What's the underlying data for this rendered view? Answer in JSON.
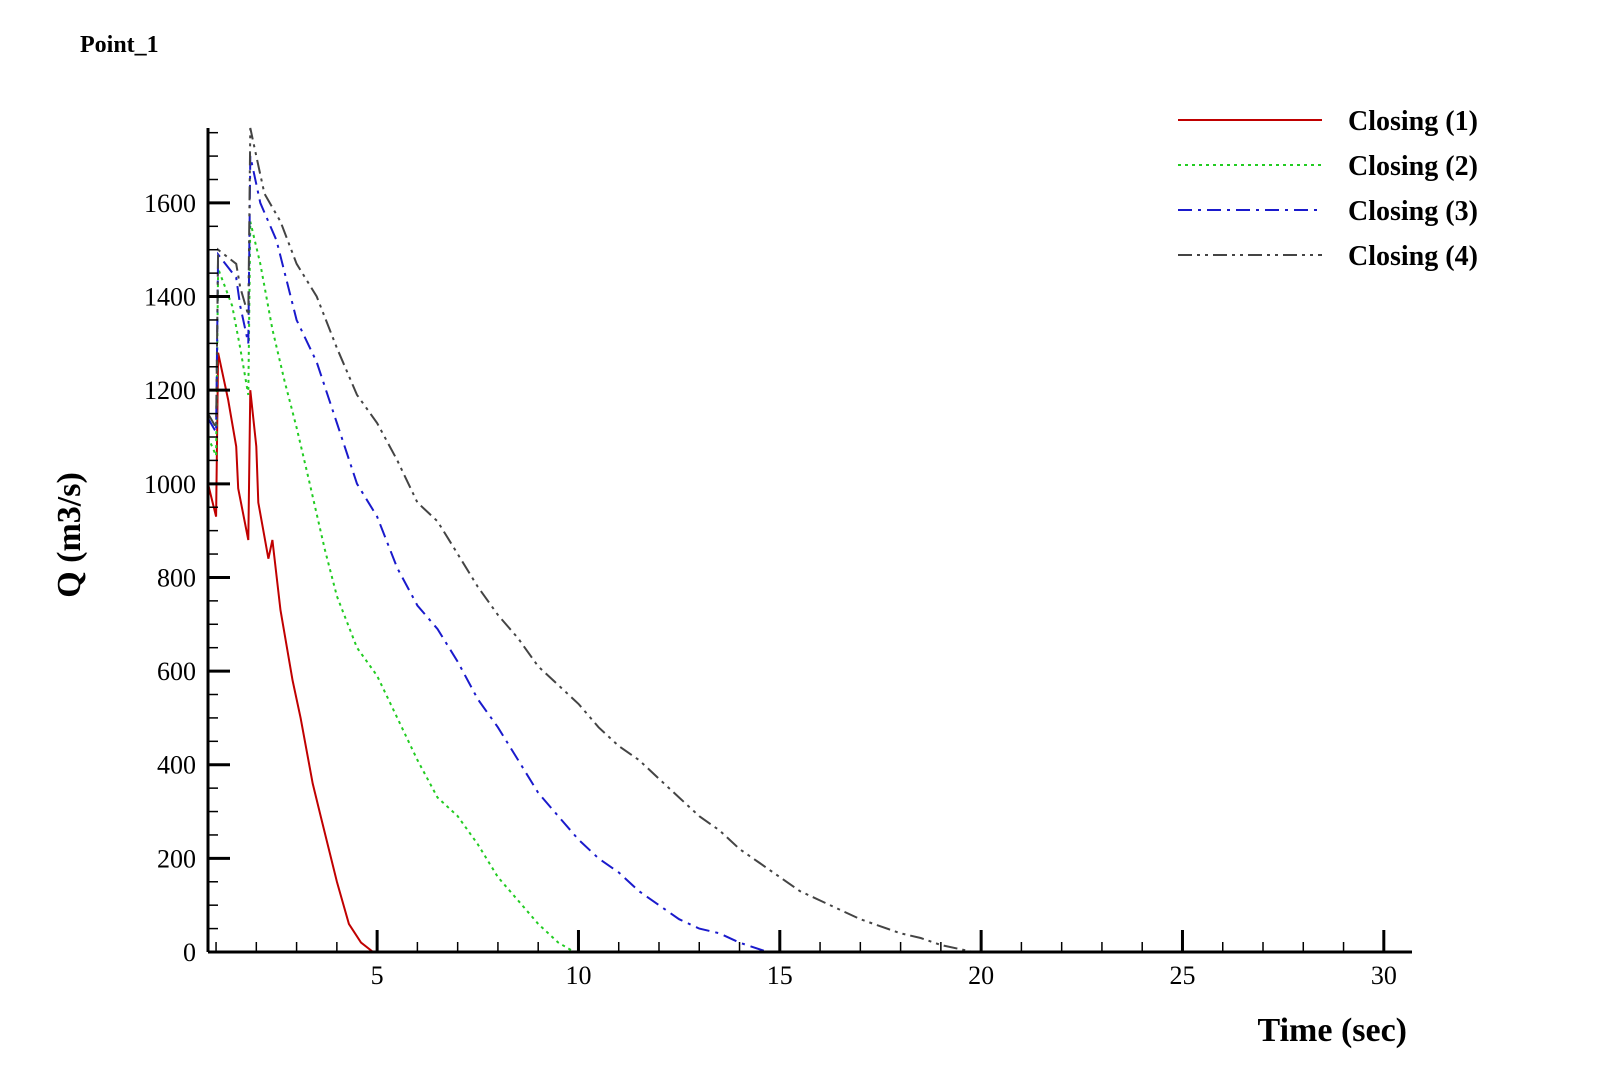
{
  "chart_data": {
    "type": "line",
    "title": "Point_1",
    "xlabel": "Time (sec)",
    "ylabel": "Q (m3/s)",
    "xlim": [
      0.8,
      30.7
    ],
    "ylim": [
      0,
      1760
    ],
    "xticks": [
      5,
      10,
      15,
      20,
      25,
      30
    ],
    "yticks": [
      0,
      200,
      400,
      600,
      800,
      1000,
      1200,
      1400,
      1600
    ],
    "x_minor_step": 1,
    "y_minor_step": 50,
    "grid": false,
    "legend_position": "top-right",
    "series": [
      {
        "name": "Closing (1)",
        "color": "#c00000",
        "dash": "solid",
        "points": [
          [
            0.8,
            1000
          ],
          [
            1.0,
            930
          ],
          [
            1.05,
            1280
          ],
          [
            1.3,
            1180
          ],
          [
            1.5,
            1080
          ],
          [
            1.55,
            990
          ],
          [
            1.8,
            880
          ],
          [
            1.85,
            1200
          ],
          [
            2.0,
            1080
          ],
          [
            2.05,
            960
          ],
          [
            2.3,
            840
          ],
          [
            2.4,
            880
          ],
          [
            2.6,
            730
          ],
          [
            2.9,
            580
          ],
          [
            3.1,
            500
          ],
          [
            3.4,
            360
          ],
          [
            3.6,
            290
          ],
          [
            3.8,
            220
          ],
          [
            4.0,
            150
          ],
          [
            4.3,
            60
          ],
          [
            4.6,
            20
          ],
          [
            4.9,
            0
          ],
          [
            30.7,
            0
          ]
        ]
      },
      {
        "name": "Closing (2)",
        "color": "#22cc22",
        "dash": "dotted",
        "points": [
          [
            0.8,
            1100
          ],
          [
            1.0,
            1060
          ],
          [
            1.05,
            1460
          ],
          [
            1.4,
            1380
          ],
          [
            1.6,
            1290
          ],
          [
            1.8,
            1190
          ],
          [
            1.85,
            1560
          ],
          [
            2.1,
            1470
          ],
          [
            2.4,
            1330
          ],
          [
            2.7,
            1220
          ],
          [
            3.0,
            1120
          ],
          [
            3.3,
            1010
          ],
          [
            3.7,
            860
          ],
          [
            4.0,
            760
          ],
          [
            4.5,
            650
          ],
          [
            5.0,
            590
          ],
          [
            5.5,
            500
          ],
          [
            6.0,
            410
          ],
          [
            6.5,
            330
          ],
          [
            7.0,
            290
          ],
          [
            7.5,
            230
          ],
          [
            8.0,
            160
          ],
          [
            8.5,
            110
          ],
          [
            9.0,
            60
          ],
          [
            9.5,
            20
          ],
          [
            9.9,
            0
          ],
          [
            30.7,
            0
          ]
        ]
      },
      {
        "name": "Closing (3)",
        "color": "#1a1acc",
        "dash": "dashdot",
        "points": [
          [
            0.8,
            1140
          ],
          [
            1.0,
            1110
          ],
          [
            1.05,
            1490
          ],
          [
            1.5,
            1440
          ],
          [
            1.6,
            1380
          ],
          [
            1.8,
            1300
          ],
          [
            1.85,
            1700
          ],
          [
            2.1,
            1600
          ],
          [
            2.5,
            1520
          ],
          [
            3.0,
            1350
          ],
          [
            3.5,
            1260
          ],
          [
            4.0,
            1130
          ],
          [
            4.5,
            1000
          ],
          [
            5.0,
            930
          ],
          [
            5.5,
            820
          ],
          [
            6.0,
            740
          ],
          [
            6.5,
            690
          ],
          [
            7.0,
            620
          ],
          [
            7.5,
            540
          ],
          [
            8.0,
            480
          ],
          [
            8.5,
            410
          ],
          [
            9.0,
            340
          ],
          [
            9.5,
            290
          ],
          [
            10.0,
            240
          ],
          [
            10.5,
            200
          ],
          [
            11.0,
            170
          ],
          [
            11.5,
            130
          ],
          [
            12.0,
            100
          ],
          [
            12.5,
            70
          ],
          [
            13.0,
            50
          ],
          [
            13.5,
            40
          ],
          [
            14.0,
            20
          ],
          [
            14.7,
            0
          ],
          [
            30.7,
            0
          ]
        ]
      },
      {
        "name": "Closing (4)",
        "color": "#444444",
        "dash": "dashdotdot",
        "points": [
          [
            0.8,
            1150
          ],
          [
            1.0,
            1120
          ],
          [
            1.05,
            1500
          ],
          [
            1.5,
            1470
          ],
          [
            1.6,
            1420
          ],
          [
            1.8,
            1360
          ],
          [
            1.85,
            1760
          ],
          [
            2.0,
            1700
          ],
          [
            2.2,
            1620
          ],
          [
            2.6,
            1560
          ],
          [
            3.0,
            1470
          ],
          [
            3.5,
            1400
          ],
          [
            4.0,
            1290
          ],
          [
            4.5,
            1190
          ],
          [
            5.0,
            1130
          ],
          [
            5.5,
            1050
          ],
          [
            6.0,
            960
          ],
          [
            6.5,
            920
          ],
          [
            7.0,
            850
          ],
          [
            7.5,
            780
          ],
          [
            8.0,
            720
          ],
          [
            8.5,
            670
          ],
          [
            9.0,
            610
          ],
          [
            9.5,
            570
          ],
          [
            10.0,
            530
          ],
          [
            10.5,
            480
          ],
          [
            11.0,
            440
          ],
          [
            11.5,
            410
          ],
          [
            12.0,
            370
          ],
          [
            12.5,
            330
          ],
          [
            13.0,
            290
          ],
          [
            13.5,
            260
          ],
          [
            14.0,
            220
          ],
          [
            14.5,
            190
          ],
          [
            15.0,
            160
          ],
          [
            15.5,
            130
          ],
          [
            16.0,
            110
          ],
          [
            16.5,
            90
          ],
          [
            17.0,
            70
          ],
          [
            17.5,
            55
          ],
          [
            18.0,
            40
          ],
          [
            18.5,
            30
          ],
          [
            19.0,
            15
          ],
          [
            19.8,
            0
          ],
          [
            30.7,
            0
          ]
        ]
      }
    ]
  }
}
